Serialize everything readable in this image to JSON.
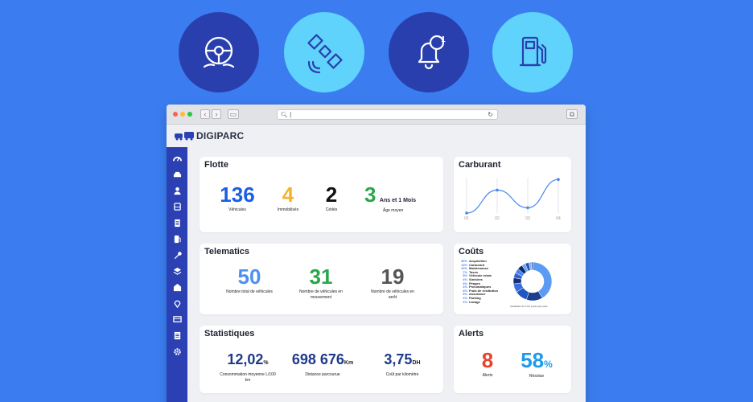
{
  "features": [
    {
      "icon": "steering-wheel-icon"
    },
    {
      "icon": "satellite-icon"
    },
    {
      "icon": "bell-notification-icon",
      "badge": "1"
    },
    {
      "icon": "fuel-pump-icon"
    }
  ],
  "browser": {
    "url": "|"
  },
  "app": {
    "name": "DIGIPARC"
  },
  "sidebar_icons": [
    "dashboard-icon",
    "car-icon",
    "user-icon",
    "bus-icon",
    "document-icon",
    "fuel-icon",
    "wrench-icon",
    "layers-icon",
    "building-icon",
    "location-pin-icon",
    "truck-icon",
    "report-icon",
    "settings-icon"
  ],
  "flotte": {
    "title": "Flotte",
    "stats": [
      {
        "value": "136",
        "label": "Véhicules",
        "color": "#1a5fe0"
      },
      {
        "value": "4",
        "label": "Immobilisés",
        "color": "#f5b32a"
      },
      {
        "value": "2",
        "label": "Cédés",
        "color": "#111111"
      },
      {
        "value": "3",
        "suffix": "Ans et 1 Mois",
        "label": "Âge moyen",
        "color": "#2aa64a"
      }
    ]
  },
  "carburant": {
    "title": "Carburant"
  },
  "chart_data": {
    "type": "line",
    "categories": [
      "01",
      "02",
      "03",
      "04"
    ],
    "values": [
      0.0,
      0.65,
      0.15,
      0.95
    ],
    "ylim": [
      0,
      1
    ]
  },
  "telematics": {
    "title": "Telematics",
    "stats": [
      {
        "value": "50",
        "label": "Nombre total de véhicules",
        "color": "#4d90f0"
      },
      {
        "value": "31",
        "label": "Nombre de véhicules en mouvement",
        "color": "#2aa64a"
      },
      {
        "value": "19",
        "label": "Nombre de véhicules en arrêt",
        "color": "#555555"
      }
    ]
  },
  "couts": {
    "title": "Coûts",
    "legend": [
      {
        "pct": "40%",
        "label": "Acquisition"
      },
      {
        "pct": "13%",
        "label": "Carburant"
      },
      {
        "pct": "10%",
        "label": "Maintenance"
      },
      {
        "pct": "7%",
        "label": "Taxes"
      },
      {
        "pct": "5%",
        "label": "Véhicule relais"
      },
      {
        "pct": "4%",
        "label": "Sinistres"
      },
      {
        "pct": "4%",
        "label": "Péages"
      },
      {
        "pct": "4%",
        "label": "Pneumatiques"
      },
      {
        "pct": "3%",
        "label": "Frais de restitution"
      },
      {
        "pct": "3%",
        "label": "Assurance"
      },
      {
        "pct": "2%",
        "label": "Parking"
      },
      {
        "pct": "1%",
        "label": "Lavage"
      }
    ],
    "footnote": "Ventilation du TCO poste par poste"
  },
  "statistiques": {
    "title": "Statistiques",
    "stats": [
      {
        "value": "12,02",
        "suffix": "%",
        "label": "Consommation moyenne L/100 km",
        "color": "#1e3a8a"
      },
      {
        "value": "698 676",
        "suffix": "Km",
        "label": "Distance parcourue",
        "color": "#1e3a8a"
      },
      {
        "value": "3,75",
        "suffix": "DH",
        "label": "Coût par kilomètre",
        "color": "#1e3a8a"
      }
    ]
  },
  "alerts": {
    "title": "Alerts",
    "stats": [
      {
        "value": "8",
        "label": "Alerts",
        "color": "#e8432b"
      },
      {
        "value": "58",
        "suffix": "%",
        "label": "Résolue",
        "color": "#1f9be8"
      }
    ]
  }
}
